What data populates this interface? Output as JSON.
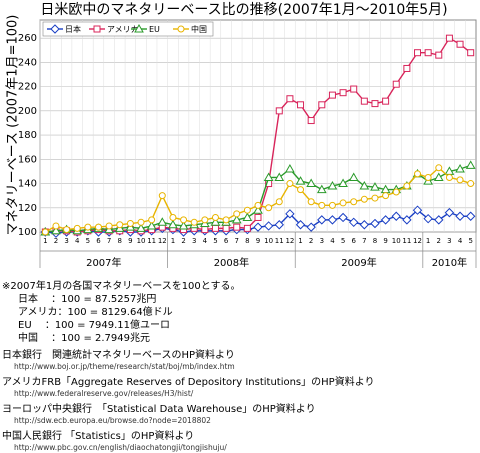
{
  "chart_data": {
    "type": "line",
    "title": "日米欧中のマネタリーベース比の推移(2007年1月～2010年5月)",
    "y_label": "マネタリーベース (2007年1月=100)",
    "categories": [
      "1",
      "2",
      "3",
      "4",
      "5",
      "6",
      "7",
      "8",
      "9",
      "10",
      "11",
      "12",
      "1",
      "2",
      "3",
      "4",
      "5",
      "6",
      "7",
      "8",
      "9",
      "10",
      "11",
      "12",
      "1",
      "2",
      "3",
      "4",
      "5",
      "6",
      "7",
      "8",
      "9",
      "10",
      "11",
      "12",
      "1",
      "2",
      "3",
      "4",
      "5"
    ],
    "years": [
      "2007年",
      "2008年",
      "2009年",
      "2010年"
    ],
    "ylim": [
      100,
      275
    ],
    "yticks": [
      100,
      120,
      140,
      160,
      180,
      200,
      220,
      240,
      260
    ],
    "grid": true,
    "legend": "top-left",
    "series": [
      {
        "name": "日本",
        "color": "#1a3fc4",
        "marker": "diamond",
        "values": [
          100,
          99,
          100,
          100,
          101,
          100,
          100,
          101,
          100,
          100,
          101,
          103,
          102,
          100,
          101,
          101,
          101,
          101,
          102,
          102,
          104,
          105,
          106,
          115,
          106,
          104,
          110,
          110,
          112,
          108,
          106,
          107,
          110,
          113,
          110,
          118,
          111,
          110,
          116,
          113,
          113
        ]
      },
      {
        "name": "アメリカ",
        "color": "#d8245a",
        "marker": "square",
        "values": [
          100,
          101,
          101,
          100,
          101,
          102,
          101,
          101,
          102,
          101,
          102,
          104,
          103,
          102,
          103,
          102,
          103,
          103,
          104,
          103,
          112,
          140,
          200,
          210,
          205,
          192,
          205,
          213,
          215,
          218,
          208,
          206,
          208,
          222,
          235,
          248,
          248,
          246,
          260,
          255,
          248
        ]
      },
      {
        "name": "EU",
        "color": "#2a9a2a",
        "marker": "triangle",
        "values": [
          100,
          101,
          102,
          101,
          102,
          103,
          102,
          103,
          104,
          103,
          105,
          108,
          106,
          105,
          106,
          107,
          108,
          108,
          110,
          112,
          118,
          145,
          145,
          152,
          142,
          140,
          135,
          138,
          140,
          145,
          138,
          137,
          135,
          135,
          138,
          148,
          142,
          145,
          150,
          152,
          155
        ]
      },
      {
        "name": "中国",
        "color": "#e8b400",
        "marker": "circle",
        "values": [
          100,
          105,
          102,
          103,
          104,
          104,
          105,
          106,
          107,
          108,
          110,
          130,
          112,
          110,
          108,
          110,
          112,
          110,
          115,
          118,
          122,
          120,
          125,
          140,
          135,
          125,
          122,
          122,
          124,
          125,
          127,
          128,
          130,
          133,
          138,
          148,
          145,
          153,
          145,
          143,
          140
        ]
      }
    ]
  },
  "notes": {
    "base": "※2007年1月の各国マネタリーベースを100とする。",
    "rates": [
      "日本　 ：100 = 87.5257兆円",
      "アメリカ：100 = 8129.64億ドル",
      "EU　  ：100 = 7949.11億ユーロ",
      "中国　 ：100 = 2.7949兆元"
    ],
    "sources": [
      {
        "text": "日本銀行　関連統計マネタリーベースのHP資料より",
        "url": "http://www.boj.or.jp/theme/research/stat/boj/mb/index.htm"
      },
      {
        "text": "アメリカFRB「Aggregate Reserves of Depository Institutions」のHP資料より",
        "url": "http://www.federalreserve.gov/releases/H3/hist/"
      },
      {
        "text": "ヨーロッパ中央銀行　「Statistical Data Warehouse」のHP資料より",
        "url": "http://sdw.ecb.europa.eu/browse.do?node=2018802"
      },
      {
        "text": "中国人民銀行 「Statistics」のHP資料より",
        "url": "http://www.pbc.gov.cn/english/diaochatongji/tongjishuju/"
      }
    ]
  }
}
